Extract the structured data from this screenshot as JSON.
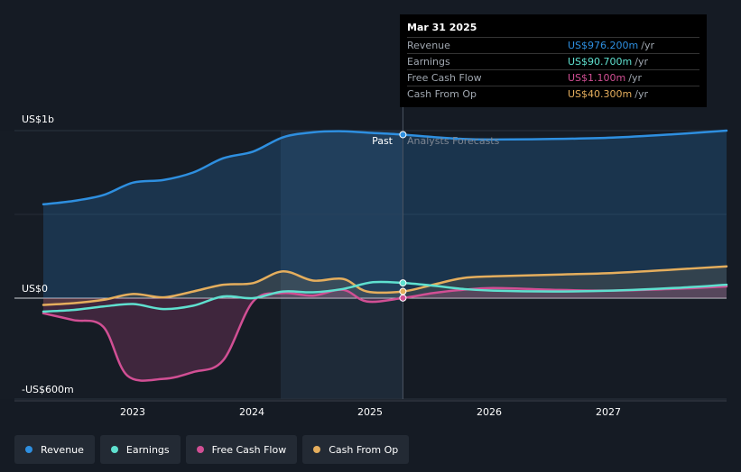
{
  "chart_data": {
    "type": "area",
    "title": "",
    "unit": "US$m",
    "y_labels": [
      {
        "text": "US$1b",
        "value": 1000
      },
      {
        "text": "US$0",
        "value": 0
      },
      {
        "text": "-US$600m",
        "value": -600
      }
    ],
    "ylim": [
      -600,
      1000
    ],
    "xlim": [
      2022.25,
      2027.95
    ],
    "x_ticks": [
      {
        "label": "2023",
        "value": 2023
      },
      {
        "label": "2024",
        "value": 2024
      },
      {
        "label": "2025",
        "value": 2025
      },
      {
        "label": "2026",
        "value": 2026
      },
      {
        "label": "2027",
        "value": 2027
      }
    ],
    "past_shade_start": 2024.23,
    "divider_x": 2025.25,
    "past_label": "Past",
    "forecast_label": "Analysts Forecasts",
    "series": [
      {
        "name": "Revenue",
        "color": "#2e8fe0",
        "points": [
          [
            2022.25,
            560
          ],
          [
            2022.5,
            580
          ],
          [
            2022.75,
            615
          ],
          [
            2023.0,
            690
          ],
          [
            2023.25,
            705
          ],
          [
            2023.5,
            750
          ],
          [
            2023.75,
            835
          ],
          [
            2024.0,
            875
          ],
          [
            2024.25,
            960
          ],
          [
            2024.5,
            990
          ],
          [
            2024.75,
            996
          ],
          [
            2025.0,
            986
          ],
          [
            2025.25,
            976
          ],
          [
            2025.5,
            962
          ],
          [
            2025.75,
            950
          ],
          [
            2026.0,
            947
          ],
          [
            2026.5,
            950
          ],
          [
            2027.0,
            958
          ],
          [
            2027.5,
            978
          ],
          [
            2027.95,
            1000
          ]
        ]
      },
      {
        "name": "Earnings",
        "color": "#5fe0cf",
        "points": [
          [
            2022.25,
            -80
          ],
          [
            2022.5,
            -70
          ],
          [
            2022.75,
            -50
          ],
          [
            2023.0,
            -35
          ],
          [
            2023.25,
            -65
          ],
          [
            2023.5,
            -45
          ],
          [
            2023.75,
            10
          ],
          [
            2024.0,
            0
          ],
          [
            2024.25,
            40
          ],
          [
            2024.5,
            35
          ],
          [
            2024.75,
            55
          ],
          [
            2025.0,
            95
          ],
          [
            2025.25,
            91
          ],
          [
            2025.5,
            75
          ],
          [
            2025.75,
            55
          ],
          [
            2026.0,
            45
          ],
          [
            2026.5,
            40
          ],
          [
            2027.0,
            45
          ],
          [
            2027.5,
            60
          ],
          [
            2027.95,
            80
          ]
        ]
      },
      {
        "name": "Free Cash Flow",
        "color": "#d14f94",
        "points": [
          [
            2022.25,
            -90
          ],
          [
            2022.5,
            -130
          ],
          [
            2022.75,
            -170
          ],
          [
            2022.95,
            -460
          ],
          [
            2023.25,
            -480
          ],
          [
            2023.5,
            -440
          ],
          [
            2023.75,
            -370
          ],
          [
            2024.0,
            -20
          ],
          [
            2024.25,
            30
          ],
          [
            2024.5,
            15
          ],
          [
            2024.75,
            50
          ],
          [
            2024.95,
            -20
          ],
          [
            2025.25,
            1
          ],
          [
            2025.5,
            30
          ],
          [
            2025.75,
            50
          ],
          [
            2026.0,
            60
          ],
          [
            2026.5,
            50
          ],
          [
            2027.0,
            45
          ],
          [
            2027.5,
            55
          ],
          [
            2027.95,
            70
          ]
        ]
      },
      {
        "name": "Cash From Op",
        "color": "#e5ae5d",
        "points": [
          [
            2022.25,
            -40
          ],
          [
            2022.5,
            -30
          ],
          [
            2022.75,
            -10
          ],
          [
            2023.0,
            25
          ],
          [
            2023.25,
            5
          ],
          [
            2023.5,
            40
          ],
          [
            2023.75,
            80
          ],
          [
            2024.0,
            90
          ],
          [
            2024.25,
            160
          ],
          [
            2024.5,
            105
          ],
          [
            2024.75,
            115
          ],
          [
            2024.95,
            40
          ],
          [
            2025.25,
            40
          ],
          [
            2025.5,
            80
          ],
          [
            2025.75,
            120
          ],
          [
            2026.0,
            130
          ],
          [
            2026.5,
            140
          ],
          [
            2027.0,
            150
          ],
          [
            2027.5,
            170
          ],
          [
            2027.95,
            190
          ]
        ]
      }
    ]
  },
  "tooltip": {
    "date": "Mar 31 2025",
    "rows": [
      {
        "name": "Revenue",
        "value": "US$976.200m",
        "unit": "/yr",
        "color": "#2e8fe0"
      },
      {
        "name": "Earnings",
        "value": "US$90.700m",
        "unit": "/yr",
        "color": "#5fe0cf"
      },
      {
        "name": "Free Cash Flow",
        "value": "US$1.100m",
        "unit": "/yr",
        "color": "#d14f94"
      },
      {
        "name": "Cash From Op",
        "value": "US$40.300m",
        "unit": "/yr",
        "color": "#e5ae5d"
      }
    ]
  },
  "legend": [
    {
      "label": "Revenue",
      "color": "#2e8fe0"
    },
    {
      "label": "Earnings",
      "color": "#5fe0cf"
    },
    {
      "label": "Free Cash Flow",
      "color": "#d14f94"
    },
    {
      "label": "Cash From Op",
      "color": "#e5ae5d"
    }
  ]
}
